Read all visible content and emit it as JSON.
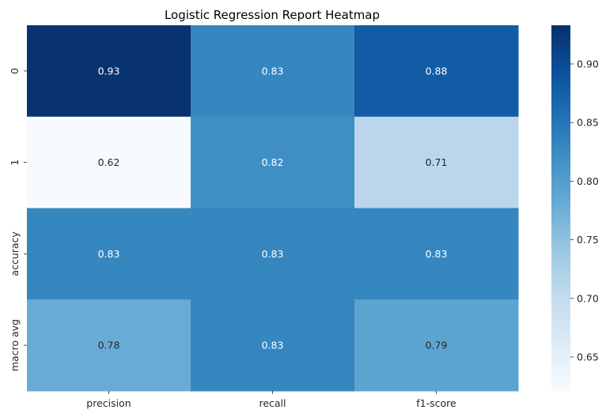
{
  "chart_data": {
    "type": "heatmap",
    "title": "Logistic Regression Report Heatmap",
    "xlabel": "",
    "ylabel": "",
    "columns": [
      "precision",
      "recall",
      "f1-score"
    ],
    "rows": [
      "0",
      "1",
      "accuracy",
      "macro avg"
    ],
    "values": [
      [
        0.93,
        0.83,
        0.88
      ],
      [
        0.62,
        0.82,
        0.71
      ],
      [
        0.83,
        0.83,
        0.83
      ],
      [
        0.78,
        0.83,
        0.79
      ]
    ],
    "value_labels": [
      [
        "0.93",
        "0.83",
        "0.88"
      ],
      [
        "0.62",
        "0.82",
        "0.71"
      ],
      [
        "0.83",
        "0.83",
        "0.83"
      ],
      [
        "0.78",
        "0.83",
        "0.79"
      ]
    ],
    "vmin": 0.621,
    "vmax": 0.933,
    "colormap": "Blues",
    "colorbar": {
      "ticks": [
        0.65,
        0.7,
        0.75,
        0.8,
        0.85,
        0.9
      ],
      "tick_labels": [
        "0.65",
        "0.70",
        "0.75",
        "0.80",
        "0.85",
        "0.90"
      ]
    }
  }
}
